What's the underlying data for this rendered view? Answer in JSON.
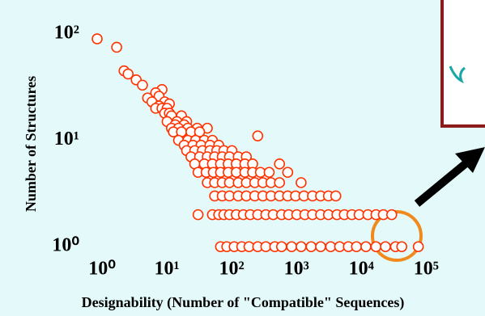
{
  "chart_data": {
    "type": "scatter",
    "xlabel": "Designability (Number of \"Compatible\" Sequences)",
    "ylabel": "Number of Structures",
    "xscale": "log",
    "yscale": "log",
    "grid": false,
    "color": "#ff3300",
    "xlim": [
      0.75,
      140000
    ],
    "ylim": [
      0.8,
      130
    ],
    "xticks": [
      {
        "value": 1,
        "label": "10⁰"
      },
      {
        "value": 10,
        "label": "10¹"
      },
      {
        "value": 100,
        "label": "10²"
      },
      {
        "value": 1000,
        "label": "10³"
      },
      {
        "value": 10000,
        "label": "10⁴"
      },
      {
        "value": 100000,
        "label": "10⁵"
      }
    ],
    "yticks": [
      {
        "value": 1,
        "label": "10⁰"
      },
      {
        "value": 10,
        "label": "10¹"
      },
      {
        "value": 100,
        "label": "10²"
      }
    ],
    "x": [
      1,
      2,
      2.6,
      3,
      4,
      5,
      10,
      8,
      9,
      6,
      7,
      11,
      13,
      9,
      8,
      10,
      12,
      11,
      13,
      14,
      20,
      12,
      17,
      24,
      16,
      22,
      14,
      18,
      25,
      35,
      50,
      15,
      20,
      28,
      38,
      300,
      18,
      25,
      33,
      45,
      60,
      22,
      30,
      40,
      55,
      75,
      24,
      32,
      42,
      55,
      70,
      90,
      120,
      28,
      38,
      50,
      65,
      85,
      110,
      150,
      200,
      32,
      45,
      60,
      80,
      105,
      140,
      190,
      250,
      650,
      36,
      48,
      62,
      80,
      105,
      140,
      190,
      250,
      330,
      450,
      870,
      50,
      65,
      85,
      110,
      150,
      200,
      270,
      360,
      480,
      650,
      1400,
      65,
      85,
      110,
      150,
      200,
      270,
      360,
      480,
      650,
      870,
      1150,
      1550,
      2100,
      2800,
      3700,
      4800,
      36,
      60,
      75,
      90,
      110,
      140,
      180,
      230,
      300,
      400,
      520,
      700,
      900,
      1200,
      1600,
      2100,
      2800,
      3700,
      5000,
      6500,
      8500,
      11000,
      15000,
      20000,
      26000,
      35000,
      80,
      100,
      130,
      170,
      220,
      300,
      400,
      550,
      700,
      1000,
      1400,
      2000,
      2800,
      4000,
      5500,
      7500,
      10000,
      14000,
      20000,
      28000,
      40000,
      50000,
      90000
    ],
    "values": [
      90,
      75,
      45,
      42,
      37,
      33,
      30,
      28,
      26,
      25,
      23,
      23,
      22,
      21,
      20,
      20,
      20,
      18,
      18,
      17,
      17,
      15,
      15,
      15,
      14,
      14,
      13,
      13,
      13,
      13,
      13,
      12,
      12,
      12,
      12,
      11,
      10,
      10,
      10,
      10,
      10,
      9,
      9,
      9,
      9,
      9,
      8,
      8,
      8,
      8,
      8,
      8,
      8,
      7,
      7,
      7,
      7,
      7,
      7,
      7,
      7,
      6,
      6,
      6,
      6,
      6,
      6,
      6,
      6,
      6,
      5,
      5,
      5,
      5,
      5,
      5,
      5,
      5,
      5,
      5,
      5,
      4,
      4,
      4,
      4,
      4,
      4,
      4,
      4,
      4,
      4,
      4,
      3,
      3,
      3,
      3,
      3,
      3,
      3,
      3,
      3,
      3,
      3,
      3,
      3,
      3,
      3,
      3,
      2,
      2,
      2,
      2,
      2,
      2,
      2,
      2,
      2,
      2,
      2,
      2,
      2,
      2,
      2,
      2,
      2,
      2,
      2,
      2,
      2,
      2,
      2,
      2,
      2,
      2,
      1,
      1,
      1,
      1,
      1,
      1,
      1,
      1,
      1,
      1,
      1,
      1,
      1,
      1,
      1,
      1,
      1,
      1,
      1,
      1,
      1,
      1,
      1
    ]
  }
}
